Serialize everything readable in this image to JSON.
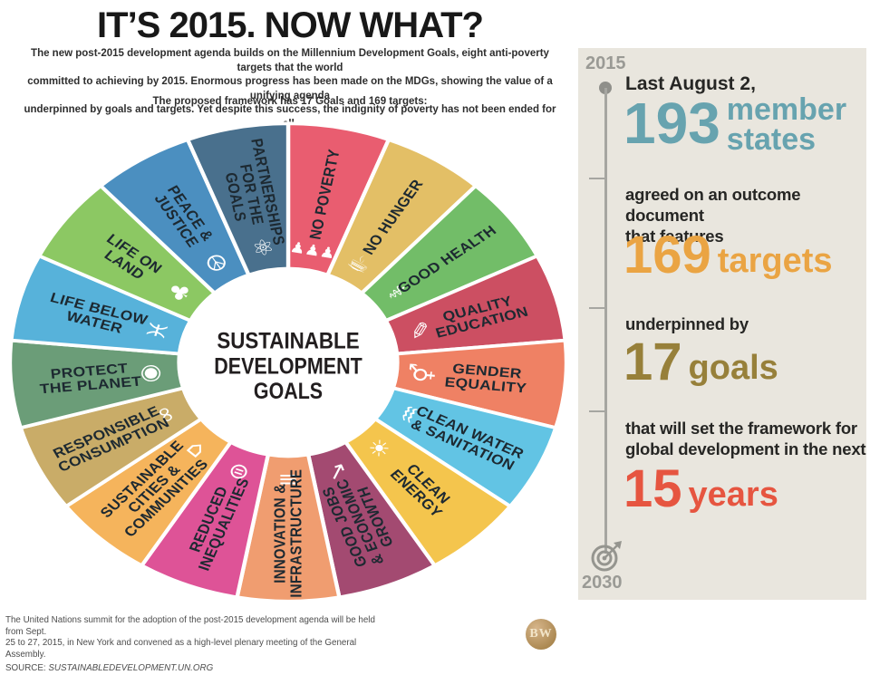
{
  "header": {
    "title": "IT’S 2015. NOW WHAT?",
    "intro_lines": [
      "The new post-2015 development agenda builds on the Millennium Development Goals, eight anti-poverty targets that the world",
      "committed to achieving by 2015. Enormous progress has been made on the MDGs, showing the value of a unifying agenda",
      "underpinned by goals and targets. Yet despite this success, the indignity of poverty has not been ended for all."
    ],
    "subtitle": "The proposed framework has 17 Goals and 169 targets:"
  },
  "wheel": {
    "center_label": [
      "SUSTAINABLE",
      "DEVELOPMENT",
      "GOALS"
    ],
    "label_color": "#1d2931",
    "segments": [
      {
        "id": "no-poverty",
        "lines": [
          "NO POVERTY"
        ],
        "color": "#e95d70",
        "icon": "people-icon",
        "glyph": "♟♟♟"
      },
      {
        "id": "no-hunger",
        "lines": [
          "NO HUNGER"
        ],
        "color": "#e3bf66",
        "icon": "bowl-icon",
        "glyph": "☕"
      },
      {
        "id": "good-health",
        "lines": [
          "GOOD HEALTH"
        ],
        "color": "#72bd68",
        "icon": "medical-icon",
        "glyph": "⚕"
      },
      {
        "id": "quality-education",
        "lines": [
          "QUALITY",
          "EDUCATION"
        ],
        "color": "#cc4f62",
        "icon": "book-icon",
        "glyph": "✎"
      },
      {
        "id": "gender-equality",
        "lines": [
          "GENDER",
          "EQUALITY"
        ],
        "color": "#ef8164",
        "icon": "gender-icon",
        "glyph": "⚥"
      },
      {
        "id": "clean-water-sanitation",
        "lines": [
          "CLEAN WATER",
          "& SANITATION"
        ],
        "color": "#62c4e4",
        "icon": "water-icon",
        "glyph": "♒"
      },
      {
        "id": "clean-energy",
        "lines": [
          "CLEAN",
          "ENERGY"
        ],
        "color": "#f4c54d",
        "icon": "sun-icon",
        "glyph": "☀"
      },
      {
        "id": "good-jobs-growth",
        "lines": [
          "GOOD JOBS",
          "& ECONOMIC",
          "GROWTH"
        ],
        "color": "#a34a71",
        "icon": "growth-icon",
        "glyph": "↗"
      },
      {
        "id": "innovation-infrastructure",
        "lines": [
          "INNOVATION &",
          "INFRASTRUCTURE"
        ],
        "color": "#f09d70",
        "icon": "bars-icon",
        "glyph": "≡"
      },
      {
        "id": "reduced-inequalities",
        "lines": [
          "REDUCED",
          "INEQUALITIES"
        ],
        "color": "#de5397",
        "icon": "equality-icon",
        "glyph": "⊜"
      },
      {
        "id": "sustainable-cities",
        "lines": [
          "SUSTAINABLE",
          "CITIES &",
          "COMMUNITIES"
        ],
        "color": "#f5b45c",
        "icon": "buildings-icon",
        "glyph": "⌂"
      },
      {
        "id": "responsible-consumption",
        "lines": [
          "RESPONSIBLE",
          "CONSUMPTION"
        ],
        "color": "#c9ac68",
        "icon": "infinity-icon",
        "glyph": "∞"
      },
      {
        "id": "protect-the-planet",
        "lines": [
          "PROTECT",
          "THE PLANET"
        ],
        "color": "#6b9d78",
        "icon": "eye-icon",
        "glyph": "◉"
      },
      {
        "id": "life-below-water",
        "lines": [
          "LIFE BELOW",
          "WATER"
        ],
        "color": "#57b2da",
        "icon": "fish-icon",
        "glyph": "♓"
      },
      {
        "id": "life-on-land",
        "lines": [
          "LIFE ON",
          "LAND"
        ],
        "color": "#8cc863",
        "icon": "tree-icon",
        "glyph": "♣"
      },
      {
        "id": "peace-justice",
        "lines": [
          "PEACE &",
          "JUSTICE"
        ],
        "color": "#4b8fc0",
        "icon": "dove-icon",
        "glyph": "☮"
      },
      {
        "id": "partnerships-goals",
        "lines": [
          "PARTNERSHIPS",
          "FOR THE",
          "GOALS"
        ],
        "color": "#49708d",
        "icon": "rings-icon",
        "glyph": "⚛"
      }
    ]
  },
  "sidebar": {
    "bg_color": "#e9e6de",
    "year_start": "2015",
    "year_end": "2030",
    "lead": "Last August 2,",
    "stat_members": {
      "number": "193",
      "unit_line1": "member",
      "unit_line2": "states",
      "color": "#67a3af"
    },
    "para1_line1": "agreed on an outcome document",
    "para1_line2": "that features",
    "stat_targets": {
      "number": "169",
      "unit": "targets",
      "color": "#eaa443"
    },
    "para2": "underpinned by",
    "stat_goals": {
      "number": "17",
      "unit": "goals",
      "color": "#97803a"
    },
    "para3_line1": "that will set the framework for",
    "para3_line2": "global development in the next",
    "stat_years": {
      "number": "15",
      "unit": "years",
      "color": "#e65540"
    }
  },
  "footer": {
    "line1": "The United Nations summit for the adoption of the post-2015 development agenda will be held from Sept.",
    "line2": "25 to 27, 2015, in New York and convened as a high-level plenary meeting of the General Assembly.",
    "source_label": "SOURCE:",
    "source_value": "SUSTAINABLEDEVELOPMENT.UN.ORG"
  },
  "logo": {
    "text": "BW"
  }
}
